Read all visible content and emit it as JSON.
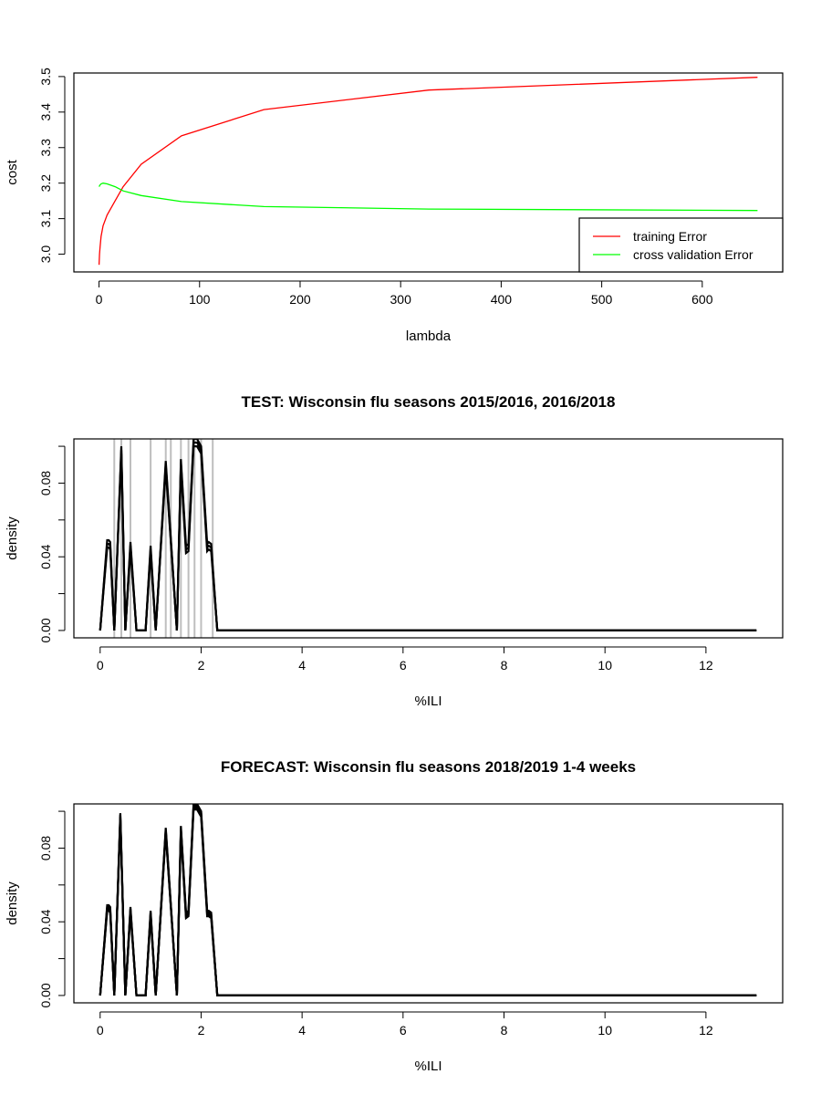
{
  "chart_data": [
    {
      "type": "line",
      "title": "",
      "xlabel": "lambda",
      "ylabel": "cost",
      "xlim": [
        -25,
        680
      ],
      "ylim": [
        2.95,
        3.51
      ],
      "xticks": [
        "0",
        "100",
        "200",
        "300",
        "400",
        "500",
        "600"
      ],
      "yticks": [
        "3.0",
        "3.1",
        "3.2",
        "3.3",
        "3.4",
        "3.5"
      ],
      "legend": {
        "position": "bottom-right",
        "entries": [
          "training Error",
          "cross validation Error"
        ]
      },
      "series": [
        {
          "name": "training Error",
          "color": "#ff0000",
          "x": [
            0,
            0.5,
            1,
            2,
            4,
            8,
            16,
            24,
            42,
            82,
            164,
            328,
            655
          ],
          "y": [
            2.97,
            3.0,
            3.02,
            3.05,
            3.08,
            3.11,
            3.15,
            3.19,
            3.253,
            3.333,
            3.407,
            3.462,
            3.498
          ]
        },
        {
          "name": "cross validation Error",
          "color": "#00ff00",
          "x": [
            0,
            1,
            2,
            4,
            8,
            16,
            24,
            42,
            82,
            164,
            328,
            655
          ],
          "y": [
            3.19,
            3.195,
            3.198,
            3.2,
            3.198,
            3.19,
            3.178,
            3.165,
            3.148,
            3.134,
            3.127,
            3.123
          ]
        }
      ]
    },
    {
      "type": "line",
      "title": "TEST: Wisconsin  flu seasons 2015/2016, 2016/2018",
      "xlabel": "%ILI",
      "ylabel": "density",
      "xlim": [
        -0.52,
        13.52
      ],
      "ylim": [
        -0.004,
        0.104
      ],
      "xticks": [
        "0",
        "2",
        "4",
        "6",
        "8",
        "10",
        "12"
      ],
      "yticks": [
        "0.00",
        "0.04",
        "0.08"
      ],
      "vlines": {
        "color": "#bebebe",
        "x": [
          0.28,
          0.42,
          0.6,
          1.0,
          1.3,
          1.4,
          1.6,
          1.75,
          1.87,
          2.0,
          2.23
        ]
      },
      "series_color": "#000000",
      "series_offsets": [
        0,
        -0.002,
        -0.004
      ],
      "density_curve": {
        "x": [
          0,
          0.14,
          0.17,
          0.2,
          0.28,
          0.42,
          0.5,
          0.6,
          0.72,
          0.9,
          1.0,
          1.1,
          1.3,
          1.52,
          1.6,
          1.7,
          1.75,
          1.85,
          1.92,
          2.0,
          2.12,
          2.15,
          2.2,
          2.32,
          13.0
        ],
        "y": [
          0,
          0.049,
          0.049,
          0.048,
          0,
          0.1,
          0,
          0.048,
          0,
          0,
          0.046,
          0,
          0.092,
          0,
          0.093,
          0.046,
          0.047,
          0.104,
          0.104,
          0.1,
          0.047,
          0.048,
          0.047,
          0,
          0
        ]
      }
    },
    {
      "type": "line",
      "title": "FORECAST: Wisconsin flu seasons 2018/2019 1-4 weeks",
      "xlabel": "%ILI",
      "ylabel": "density",
      "xlim": [
        -0.52,
        13.52
      ],
      "ylim": [
        -0.004,
        0.104
      ],
      "xticks": [
        "0",
        "2",
        "4",
        "6",
        "8",
        "10",
        "12"
      ],
      "yticks": [
        "0.00",
        "0.04",
        "0.08"
      ],
      "series_color": "#000000",
      "series_offsets": [
        0,
        -0.001,
        -0.002,
        -0.003
      ],
      "density_curve": {
        "x": [
          0,
          0.14,
          0.17,
          0.2,
          0.28,
          0.4,
          0.5,
          0.6,
          0.72,
          0.9,
          1.0,
          1.1,
          1.3,
          1.52,
          1.6,
          1.7,
          1.75,
          1.85,
          1.92,
          2.0,
          2.12,
          2.15,
          2.2,
          2.32,
          13.0
        ],
        "y": [
          0,
          0.049,
          0.049,
          0.048,
          0,
          0.099,
          0,
          0.048,
          0,
          0,
          0.046,
          0,
          0.091,
          0,
          0.092,
          0.045,
          0.046,
          0.104,
          0.104,
          0.1,
          0.046,
          0.046,
          0.045,
          0,
          0
        ]
      }
    }
  ]
}
